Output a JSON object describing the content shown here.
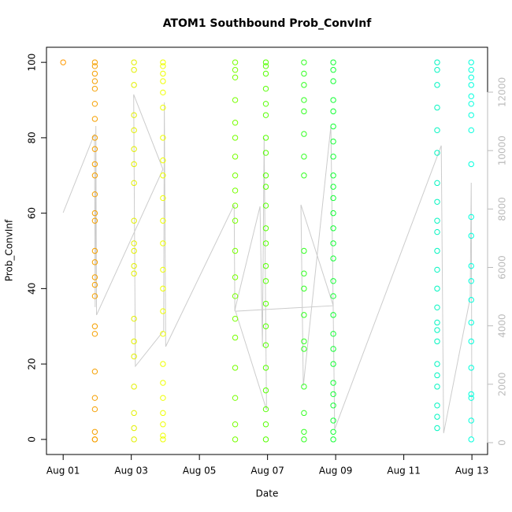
{
  "chart_data": {
    "type": "scatter",
    "title": "ATOM1 Southbound Prob_ConvInf",
    "x_label": "Date",
    "y_label": "Prob_ConvInf",
    "xlim": [
      0.51,
      13.46
    ],
    "ylim": [
      -4,
      104
    ],
    "y2lim": [
      -405,
      13537
    ],
    "xticks": [
      {
        "value": 1,
        "label": "Aug 01"
      },
      {
        "value": 3,
        "label": "Aug 03"
      },
      {
        "value": 5,
        "label": "Aug 05"
      },
      {
        "value": 7,
        "label": "Aug 07"
      },
      {
        "value": 9,
        "label": "Aug 09"
      },
      {
        "value": 11,
        "label": "Aug 11"
      },
      {
        "value": 13,
        "label": "Aug 13"
      }
    ],
    "yticks": [
      0,
      20,
      40,
      60,
      80,
      100
    ],
    "y2ticks": [
      0,
      2000,
      4000,
      6000,
      8000,
      10000,
      12000
    ],
    "y2_color": "#bbbbbb",
    "series": [
      {
        "color": "#ff9900",
        "x": 1.0,
        "values": [
          100
        ]
      },
      {
        "color": "#f5a000",
        "x": 1.93,
        "values": [
          100,
          99,
          97,
          95,
          93,
          89,
          85,
          80,
          77,
          73,
          70,
          65,
          60,
          58,
          50,
          47,
          43,
          41,
          38,
          30,
          28,
          18,
          11,
          8,
          2,
          0,
          0
        ]
      },
      {
        "color": "#e2ef00",
        "x": 3.08,
        "values": [
          100,
          98,
          94,
          86,
          82,
          77,
          73,
          68,
          58,
          52,
          50,
          46,
          44,
          32,
          26,
          22,
          14,
          7,
          3,
          0
        ]
      },
      {
        "color": "#eeff00",
        "x": 3.93,
        "values": [
          100,
          99,
          97,
          95,
          92,
          88,
          80,
          74,
          70,
          64,
          58,
          52,
          45,
          40,
          34,
          28,
          20,
          15,
          11,
          7,
          4,
          1,
          0
        ]
      },
      {
        "color": "#77ff00",
        "x": 6.05,
        "values": [
          100,
          98,
          96,
          90,
          84,
          80,
          75,
          70,
          66,
          62,
          58,
          50,
          43,
          38,
          32,
          27,
          19,
          11,
          4,
          0
        ]
      },
      {
        "color": "#55ff00",
        "x": 6.95,
        "values": [
          100,
          99,
          97,
          93,
          89,
          86,
          80,
          76,
          70,
          67,
          62,
          56,
          52,
          46,
          42,
          36,
          30,
          25,
          19,
          13,
          8,
          4,
          0
        ]
      },
      {
        "color": "#33ff22",
        "x": 8.07,
        "values": [
          100,
          97,
          94,
          90,
          87,
          81,
          75,
          70,
          50,
          44,
          40,
          33,
          26,
          24,
          14,
          7,
          2,
          0
        ]
      },
      {
        "color": "#11ff33",
        "x": 8.93,
        "values": [
          100,
          98,
          95,
          90,
          87,
          83,
          79,
          75,
          70,
          67,
          64,
          60,
          56,
          52,
          48,
          42,
          38,
          33,
          28,
          24,
          20,
          15,
          12,
          9,
          5,
          2,
          0
        ]
      },
      {
        "color": "#00f5c0",
        "x": 11.98,
        "values": [
          100,
          98,
          94,
          88,
          82,
          76,
          68,
          63,
          58,
          55,
          50,
          45,
          40,
          35,
          31,
          29,
          26,
          20,
          17,
          14,
          9,
          6,
          3
        ]
      },
      {
        "color": "#00ffdd",
        "x": 12.98,
        "values": [
          100,
          98,
          96,
          94,
          91,
          89,
          86,
          82,
          73,
          59,
          54,
          46,
          42,
          37,
          31,
          26,
          19,
          12,
          11,
          5,
          0
        ]
      },
      {
        "type": "line",
        "axis": "y2",
        "color": "#cccccc",
        "x": [
          1.0,
          1.92,
          1.94,
          1.96,
          1.98,
          3.93,
          3.07,
          3.12,
          3.95,
          3.97,
          4.01,
          6.02,
          6.04,
          6.06,
          6.78,
          6.85,
          6.9,
          6.97,
          6.06,
          8.93,
          7.98,
          8.05,
          8.86,
          8.95,
          8.97,
          12.1,
          12.17,
          12.95,
          12.98,
          13.0
        ],
        "values": [
          7875,
          10570,
          4640,
          10840,
          4370,
          9360,
          11920,
          2615,
          3830,
          11650,
          3290,
          8145,
          4500,
          4640,
          8090,
          3290,
          10440,
          1130,
          4500,
          4690,
          8145,
          1940,
          10840,
          2480,
          460,
          10170,
          325,
          4960,
          8900,
          190
        ]
      }
    ]
  }
}
